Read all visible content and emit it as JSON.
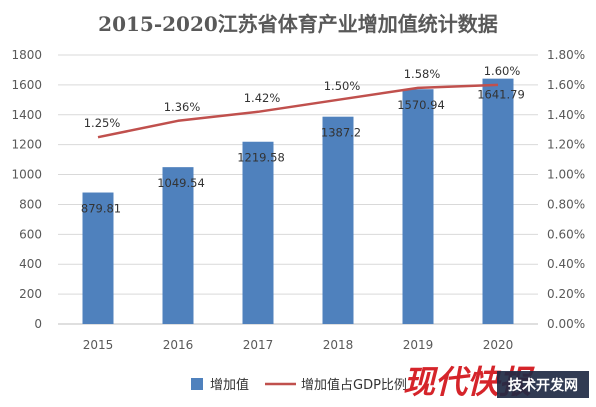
{
  "chart_data": {
    "type": "bar",
    "title": "2015-2020江苏省体育产业增加值统计数据",
    "categories": [
      "2015",
      "2016",
      "2017",
      "2018",
      "2019",
      "2020"
    ],
    "series": [
      {
        "name": "增加值",
        "type": "bar",
        "axis": "left",
        "values": [
          879.81,
          1049.54,
          1219.58,
          1387.2,
          1570.94,
          1641.79
        ],
        "labels": [
          "879.81",
          "1049.54",
          "1219.58",
          "1387.2",
          "1570.94",
          "1641.79"
        ],
        "color": "#4f81bd"
      },
      {
        "name": "增加值占GDP比例",
        "type": "line",
        "axis": "right",
        "values": [
          1.25,
          1.36,
          1.42,
          1.5,
          1.58,
          1.6
        ],
        "labels": [
          "1.25%",
          "1.36%",
          "1.42%",
          "1.50%",
          "1.58%",
          "1.60%"
        ],
        "color": "#c0504d"
      }
    ],
    "ylim": [
      0,
      1800
    ],
    "y_ticks": [
      "0",
      "200",
      "400",
      "600",
      "800",
      "1000",
      "1200",
      "1400",
      "1600",
      "1800"
    ],
    "y2lim": [
      0,
      1.8
    ],
    "y2_ticks": [
      "0.00%",
      "0.20%",
      "0.40%",
      "0.60%",
      "0.80%",
      "1.00%",
      "1.20%",
      "1.40%",
      "1.60%",
      "1.80%"
    ],
    "grid": true,
    "legend_position": "bottom"
  },
  "watermark": {
    "brand": "现代快报",
    "site": "技术开发网",
    "color": "#d5242a"
  }
}
